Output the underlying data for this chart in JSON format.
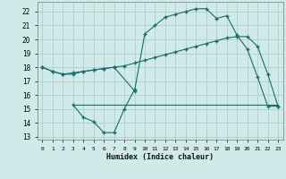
{
  "bg_color": "#d0eaea",
  "grid_color": "#aac8c8",
  "line_color": "#1a6b6b",
  "line_width": 0.8,
  "marker": "+",
  "marker_size": 3,
  "xlabel": "Humidex (Indice chaleur)",
  "ylabel_ticks": [
    13,
    14,
    15,
    16,
    17,
    18,
    19,
    20,
    21,
    22
  ],
  "xlim": [
    -0.5,
    23.5
  ],
  "ylim": [
    12.8,
    22.7
  ],
  "line1_x": [
    0,
    1,
    2,
    3,
    4,
    5,
    6,
    7,
    9,
    10,
    11,
    12,
    13,
    14,
    15,
    16,
    17,
    18,
    19,
    20,
    21,
    22,
    23
  ],
  "line1_y": [
    18.0,
    17.7,
    17.5,
    17.5,
    17.7,
    17.8,
    17.9,
    18.0,
    16.3,
    20.4,
    21.0,
    21.6,
    21.8,
    22.0,
    22.2,
    22.2,
    21.5,
    21.7,
    20.3,
    19.3,
    17.3,
    15.2,
    15.2
  ],
  "line2_x": [
    0,
    1,
    2,
    3,
    4,
    5,
    6,
    7,
    8,
    9,
    10,
    11,
    12,
    13,
    14,
    15,
    16,
    17,
    18,
    19,
    20,
    21,
    22,
    23
  ],
  "line2_y": [
    18.0,
    17.7,
    17.5,
    17.6,
    17.7,
    17.8,
    17.9,
    18.0,
    18.1,
    18.3,
    18.5,
    18.7,
    18.9,
    19.1,
    19.3,
    19.5,
    19.7,
    19.9,
    20.1,
    20.2,
    20.2,
    19.5,
    17.5,
    15.2
  ],
  "line3_x": [
    3,
    23
  ],
  "line3_y": [
    15.3,
    15.3
  ],
  "line4_x": [
    3,
    4,
    5,
    6,
    7,
    8,
    9
  ],
  "line4_y": [
    15.3,
    14.4,
    14.1,
    13.3,
    13.3,
    15.0,
    16.4
  ],
  "xtick_labels": [
    "0",
    "1",
    "2",
    "3",
    "4",
    "5",
    "6",
    "7",
    "8",
    "9",
    "10",
    "11",
    "12",
    "13",
    "14",
    "15",
    "16",
    "17",
    "18",
    "19",
    "20",
    "21",
    "22",
    "23"
  ]
}
